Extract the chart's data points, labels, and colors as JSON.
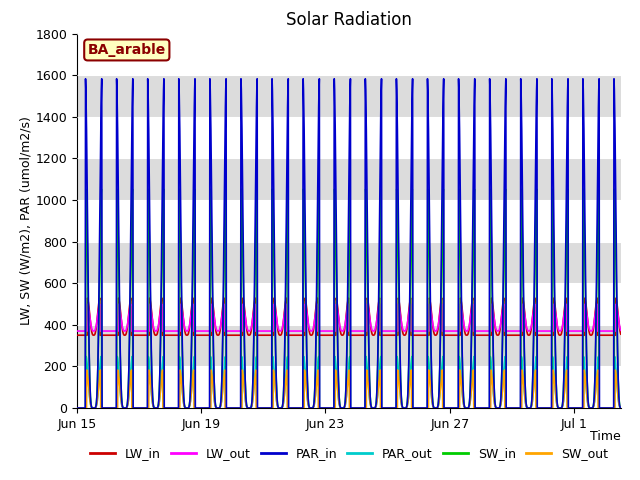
{
  "title": "Solar Radiation",
  "xlabel": "Time",
  "ylabel": "LW, SW (W/m2), PAR (umol/m2/s)",
  "ylim": [
    0,
    1800
  ],
  "annotation_text": "BA_arable",
  "annotation_facecolor": "#FFFFC0",
  "annotation_edgecolor": "#8B0000",
  "plot_bg_white": "#FFFFFF",
  "plot_bg_gray": "#DCDCDC",
  "legend": {
    "LW_in": {
      "color": "#CC0000",
      "lw": 1.2
    },
    "LW_out": {
      "color": "#FF00FF",
      "lw": 1.2
    },
    "PAR_in": {
      "color": "#0000CC",
      "lw": 1.2
    },
    "PAR_out": {
      "color": "#00CCCC",
      "lw": 1.2
    },
    "SW_in": {
      "color": "#00CC00",
      "lw": 1.2
    },
    "SW_out": {
      "color": "#FFA500",
      "lw": 1.2
    }
  },
  "xtick_labels": [
    "Jun 15",
    "Jun 19",
    "Jun 23",
    "Jun 27",
    "Jul 1"
  ],
  "xtick_day_offsets": [
    0,
    4,
    8,
    12,
    16
  ],
  "n_days": 18,
  "title_fontsize": 12,
  "label_fontsize": 9,
  "tick_fontsize": 9,
  "legend_fontsize": 9
}
